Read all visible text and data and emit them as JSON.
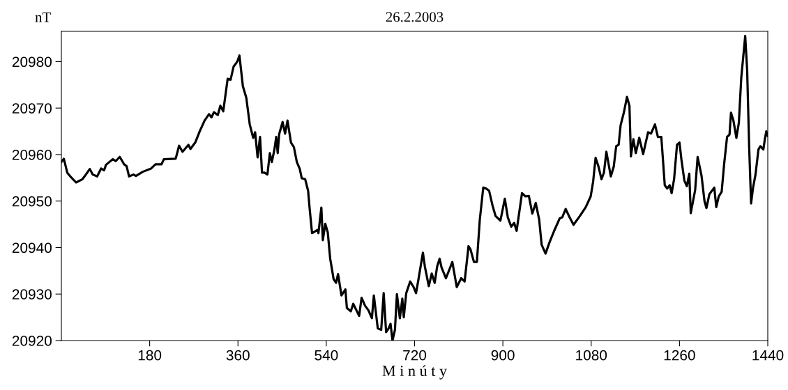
{
  "chart_data": {
    "type": "line",
    "title": "26.2.2003",
    "xlabel": "M i n ú t y",
    "ylabel": "nT",
    "xlim": [
      0,
      1440
    ],
    "xticks": [
      180,
      360,
      540,
      720,
      900,
      1080,
      1260,
      1440
    ],
    "ylim": [
      20920,
      20986.5
    ],
    "yticks": [
      20920,
      20930,
      20940,
      20950,
      20960,
      20970,
      20980
    ],
    "marker": "none",
    "line_style": "solid",
    "series": [
      {
        "color": "#000000",
        "x": [
          0,
          5,
          12,
          19,
          30,
          43,
          50,
          58,
          64,
          73,
          81,
          87,
          91,
          105,
          111,
          119,
          128,
          133,
          138,
          147,
          152,
          166,
          183,
          192,
          204,
          209,
          233,
          240,
          247,
          259,
          263,
          273,
          282,
          292,
          301,
          306,
          311,
          319,
          324,
          330,
          339,
          345,
          351,
          356,
          359,
          363,
          370,
          377,
          384,
          391,
          395,
          400,
          405,
          409,
          414,
          420,
          425,
          429,
          434,
          438,
          441,
          444,
          451,
          456,
          461,
          468,
          474,
          480,
          486,
          490,
          497,
          503,
          506,
          511,
          522,
          524,
          530,
          533,
          538,
          543,
          548,
          555,
          560,
          564,
          571,
          579,
          582,
          590,
          595,
          607,
          612,
          619,
          626,
          633,
          637,
          645,
          652,
          657,
          662,
          667,
          671,
          675,
          680,
          684,
          690,
          695,
          698,
          703,
          711,
          718,
          723,
          728,
          737,
          741,
          749,
          755,
          761,
          766,
          771,
          775,
          784,
          797,
          806,
          815,
          822,
          830,
          834,
          841,
          847,
          853,
          860,
          866,
          872,
          879,
          885,
          895,
          904,
          910,
          917,
          923,
          928,
          939,
          946,
          953,
          960,
          967,
          974,
          979,
          987,
          995,
          1005,
          1016,
          1021,
          1028,
          1036,
          1044,
          1057,
          1069,
          1079,
          1084,
          1089,
          1095,
          1101,
          1106,
          1111,
          1120,
          1126,
          1131,
          1136,
          1140,
          1147,
          1153,
          1158,
          1161,
          1166,
          1171,
          1178,
          1186,
          1196,
          1202,
          1210,
          1216,
          1223,
          1230,
          1235,
          1240,
          1244,
          1249,
          1255,
          1260,
          1264,
          1270,
          1275,
          1280,
          1283,
          1292,
          1297,
          1305,
          1311,
          1315,
          1321,
          1331,
          1335,
          1340,
          1346,
          1351,
          1357,
          1362,
          1365,
          1370,
          1376,
          1381,
          1386,
          1394,
          1398,
          1402,
          1406,
          1410,
          1415,
          1421,
          1425,
          1431,
          1434,
          1437,
          1440
        ],
        "values": [
          20958.4,
          20959.1,
          20956.1,
          20955.2,
          20954.0,
          20954.7,
          20955.7,
          20956.9,
          20955.7,
          20955.3,
          20957.0,
          20956.6,
          20957.8,
          20959.0,
          20958.6,
          20959.5,
          20957.9,
          20957.5,
          20955.3,
          20955.7,
          20955.4,
          20956.3,
          20957.0,
          20957.9,
          20957.9,
          20959.0,
          20959.1,
          20961.9,
          20960.6,
          20962.1,
          20961.2,
          20962.6,
          20965.0,
          20967.3,
          20968.7,
          20968.0,
          20969.1,
          20968.5,
          20970.5,
          20969.3,
          20976.3,
          20976.1,
          20978.9,
          20979.6,
          20980.1,
          20981.3,
          20974.7,
          20972.2,
          20966.5,
          20963.6,
          20964.8,
          20959.4,
          20963.8,
          20956.1,
          20956.1,
          20955.7,
          20960.3,
          20958.4,
          20960.9,
          20963.8,
          20960.3,
          20964.4,
          20967.0,
          20964.5,
          20967.3,
          20962.6,
          20961.6,
          20958.4,
          20956.9,
          20954.9,
          20954.7,
          20952.2,
          20948.5,
          20943.1,
          20943.8,
          20943.1,
          20948.6,
          20941.6,
          20945.1,
          20943.3,
          20937.6,
          20933.2,
          20932.4,
          20934.3,
          20929.7,
          20931.0,
          20927.0,
          20926.3,
          20927.9,
          20925.3,
          20929.2,
          20927.5,
          20926.5,
          20924.8,
          20929.7,
          20922.6,
          20922.3,
          20930.2,
          20921.8,
          20922.6,
          20923.6,
          20920.0,
          20922.3,
          20930.0,
          20924.8,
          20929.0,
          20925.0,
          20930.2,
          20932.7,
          20931.5,
          20930.2,
          20933.2,
          20938.9,
          20935.9,
          20931.7,
          20934.4,
          20932.4,
          20935.9,
          20937.6,
          20935.7,
          20933.4,
          20936.9,
          20931.5,
          20933.4,
          20932.7,
          20940.3,
          20939.6,
          20936.9,
          20936.9,
          20946.0,
          20952.9,
          20952.7,
          20952.2,
          20949.0,
          20946.8,
          20945.8,
          20950.5,
          20946.5,
          20944.5,
          20945.3,
          20943.6,
          20951.7,
          20951.0,
          20951.1,
          20947.3,
          20949.6,
          20946.0,
          20940.6,
          20938.7,
          20941.1,
          20943.7,
          20946.3,
          20946.5,
          20948.3,
          20946.5,
          20944.9,
          20946.8,
          20948.7,
          20951.0,
          20954.2,
          20959.3,
          20957.4,
          20954.7,
          20956.1,
          20960.6,
          20955.3,
          20957.4,
          20961.8,
          20962.1,
          20966.3,
          20969.2,
          20972.4,
          20970.5,
          20959.6,
          20963.3,
          20960.3,
          20963.6,
          20960.1,
          20964.8,
          20964.5,
          20966.5,
          20963.8,
          20963.8,
          20953.4,
          20952.7,
          20953.4,
          20951.7,
          20954.7,
          20962.1,
          20962.6,
          20958.9,
          20954.4,
          20953.2,
          20955.9,
          20947.4,
          20952.4,
          20959.5,
          20955.4,
          20950.0,
          20948.5,
          20951.5,
          20952.9,
          20948.7,
          20951.0,
          20952.0,
          20957.9,
          20963.8,
          20964.3,
          20969.0,
          20967.3,
          20963.6,
          20966.8,
          20976.6,
          20985.5,
          20978.1,
          20961.8,
          20949.5,
          20952.9,
          20955.7,
          20961.1,
          20961.8,
          20961.1,
          20963.3,
          20965.0,
          20964.0
        ]
      }
    ]
  }
}
